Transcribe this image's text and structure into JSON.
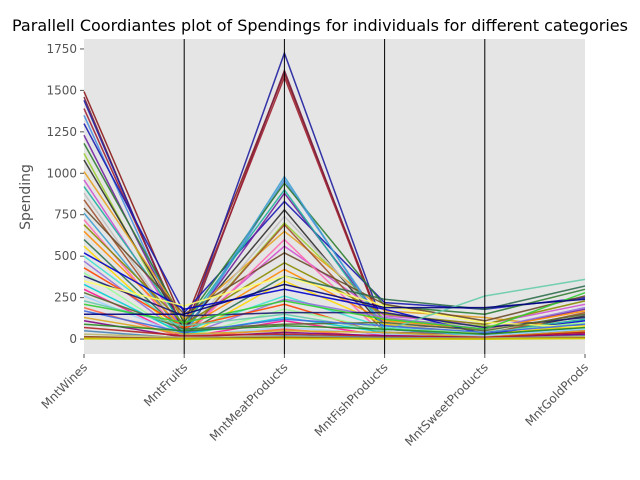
{
  "chart_data": {
    "type": "line",
    "title": "Parallell Coordiantes plot of Spendings for individuals for different categories",
    "ylabel": "Spending",
    "xlabel": "",
    "categories": [
      "MntWines",
      "MntFruits",
      "MntMeatProducts",
      "MntFishProducts",
      "MntSweetProducts",
      "MntGoldProds"
    ],
    "ylim": [
      -90,
      1810
    ],
    "yticks": [
      0,
      250,
      500,
      750,
      1000,
      1250,
      1500,
      1750
    ],
    "grid": false,
    "legend": "none",
    "background_color": "#e5e5e5",
    "axis_line_color": "#000000",
    "series": [
      {
        "values": [
          1493,
          90,
          1607,
          40,
          10,
          70
        ],
        "color": "#8b1a1a"
      },
      {
        "values": [
          1460,
          10,
          1620,
          25,
          15,
          40
        ],
        "color": "#7a2040"
      },
      {
        "values": [
          1440,
          30,
          1725,
          60,
          20,
          55
        ],
        "color": "#1f1fa0"
      },
      {
        "values": [
          1390,
          50,
          1580,
          30,
          10,
          20
        ],
        "color": "#a02030"
      },
      {
        "values": [
          1350,
          20,
          960,
          80,
          30,
          60
        ],
        "color": "#4a90e0"
      },
      {
        "values": [
          1300,
          160,
          830,
          220,
          180,
          250
        ],
        "color": "#1a1ab0"
      },
      {
        "values": [
          1230,
          40,
          880,
          90,
          60,
          180
        ],
        "color": "#7020a0"
      },
      {
        "values": [
          1180,
          100,
          940,
          200,
          150,
          300
        ],
        "color": "#2e7d32"
      },
      {
        "values": [
          1120,
          10,
          700,
          120,
          80,
          90
        ],
        "color": "#9acd32"
      },
      {
        "values": [
          1080,
          60,
          780,
          60,
          30,
          140
        ],
        "color": "#303030"
      },
      {
        "values": [
          1010,
          120,
          650,
          170,
          130,
          60
        ],
        "color": "#e6a020"
      },
      {
        "values": [
          960,
          40,
          560,
          140,
          90,
          210
        ],
        "color": "#d050d0"
      },
      {
        "values": [
          920,
          80,
          900,
          60,
          40,
          120
        ],
        "color": "#20b0a0"
      },
      {
        "values": [
          880,
          20,
          740,
          100,
          20,
          30
        ],
        "color": "#c0c0c0"
      },
      {
        "values": [
          840,
          10,
          690,
          40,
          30,
          160
        ],
        "color": "#a0522d"
      },
      {
        "values": [
          790,
          150,
          520,
          210,
          110,
          260
        ],
        "color": "#6b4c2a"
      },
      {
        "values": [
          760,
          30,
          980,
          60,
          20,
          90
        ],
        "color": "#3fa0d0"
      },
      {
        "values": [
          720,
          10,
          600,
          20,
          10,
          50
        ],
        "color": "#ff69b4"
      },
      {
        "values": [
          690,
          90,
          460,
          150,
          90,
          230
        ],
        "color": "#8b8b00"
      },
      {
        "values": [
          650,
          60,
          420,
          110,
          60,
          170
        ],
        "color": "#ff8c00"
      },
      {
        "values": [
          600,
          30,
          380,
          240,
          180,
          320
        ],
        "color": "#2f6f4f"
      },
      {
        "values": [
          560,
          10,
          350,
          90,
          30,
          80
        ],
        "color": "#ffd700"
      },
      {
        "values": [
          520,
          180,
          300,
          180,
          30,
          110
        ],
        "color": "#0000cd"
      },
      {
        "values": [
          500,
          50,
          260,
          70,
          20,
          60
        ],
        "color": "#40e0d0"
      },
      {
        "values": [
          470,
          20,
          240,
          130,
          60,
          190
        ],
        "color": "#9370db"
      },
      {
        "values": [
          430,
          70,
          210,
          30,
          20,
          40
        ],
        "color": "#ff4500"
      },
      {
        "values": [
          400,
          10,
          180,
          60,
          40,
          100
        ],
        "color": "#98fb98"
      },
      {
        "values": [
          380,
          140,
          160,
          160,
          70,
          130
        ],
        "color": "#191970"
      },
      {
        "values": [
          350,
          200,
          380,
          200,
          100,
          70
        ],
        "color": "#ffff66"
      },
      {
        "values": [
          330,
          30,
          130,
          40,
          10,
          20
        ],
        "color": "#00ced1"
      },
      {
        "values": [
          300,
          10,
          110,
          20,
          5,
          30
        ],
        "color": "#ff1493"
      },
      {
        "values": [
          280,
          60,
          90,
          100,
          50,
          150
        ],
        "color": "#556b2f"
      },
      {
        "values": [
          260,
          20,
          70,
          30,
          20,
          60
        ],
        "color": "#a0d0ff"
      },
      {
        "values": [
          230,
          80,
          150,
          50,
          260,
          360
        ],
        "color": "#66ccaa"
      },
      {
        "values": [
          210,
          100,
          230,
          120,
          60,
          280
        ],
        "color": "#32cd32"
      },
      {
        "values": [
          190,
          10,
          60,
          10,
          5,
          20
        ],
        "color": "#ff6347"
      },
      {
        "values": [
          170,
          40,
          120,
          80,
          40,
          90
        ],
        "color": "#4169e1"
      },
      {
        "values": [
          150,
          150,
          330,
          190,
          190,
          240
        ],
        "color": "#000080"
      },
      {
        "values": [
          130,
          30,
          50,
          40,
          10,
          50
        ],
        "color": "#daa520"
      },
      {
        "values": [
          110,
          10,
          40,
          20,
          10,
          30
        ],
        "color": "#800080"
      },
      {
        "values": [
          90,
          50,
          80,
          60,
          30,
          70
        ],
        "color": "#228b22"
      },
      {
        "values": [
          70,
          20,
          30,
          15,
          10,
          40
        ],
        "color": "#b22222"
      },
      {
        "values": [
          50,
          5,
          20,
          10,
          5,
          20
        ],
        "color": "#4682b4"
      },
      {
        "values": [
          30,
          10,
          15,
          5,
          5,
          15
        ],
        "color": "#bdb76b"
      },
      {
        "values": [
          15,
          2,
          10,
          3,
          1,
          8
        ],
        "color": "#8b4513"
      },
      {
        "values": [
          5,
          1,
          5,
          2,
          1,
          5
        ],
        "color": "#ccaa00"
      },
      {
        "values": [
          1,
          0,
          2,
          0,
          0,
          3
        ],
        "color": "#cccc00"
      }
    ]
  }
}
